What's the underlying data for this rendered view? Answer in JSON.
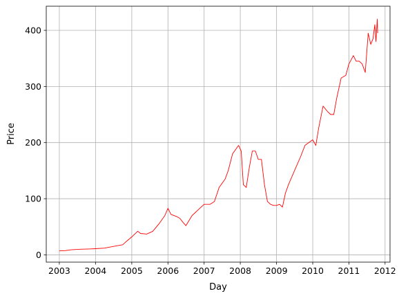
{
  "chart_data": {
    "type": "line",
    "title": "",
    "xlabel": "Day",
    "ylabel": "Price",
    "x_ticks": [
      "2003",
      "2004",
      "2005",
      "2006",
      "2007",
      "2008",
      "2009",
      "2010",
      "2011",
      "2012"
    ],
    "y_ticks": [
      0,
      100,
      200,
      300,
      400
    ],
    "xlim": [
      "2002-08-22",
      "2012-02-20"
    ],
    "ylim": [
      -13,
      443
    ],
    "grid": true,
    "series": [
      {
        "color": "#ff0000",
        "points": [
          [
            "2003-01-01",
            7
          ],
          [
            "2003-03-01",
            7.5
          ],
          [
            "2003-05-01",
            9
          ],
          [
            "2003-08-01",
            10
          ],
          [
            "2003-11-01",
            10.5
          ],
          [
            "2004-01-01",
            11
          ],
          [
            "2004-04-01",
            12
          ],
          [
            "2004-07-01",
            15
          ],
          [
            "2004-10-01",
            18
          ],
          [
            "2004-11-15",
            25
          ],
          [
            "2005-01-01",
            32
          ],
          [
            "2005-03-01",
            42
          ],
          [
            "2005-04-01",
            38
          ],
          [
            "2005-06-01",
            37
          ],
          [
            "2005-08-01",
            42
          ],
          [
            "2005-10-01",
            55
          ],
          [
            "2005-12-01",
            70
          ],
          [
            "2006-01-01",
            83
          ],
          [
            "2006-02-01",
            72
          ],
          [
            "2006-04-01",
            68
          ],
          [
            "2006-05-01",
            65
          ],
          [
            "2006-06-01",
            58
          ],
          [
            "2006-07-01",
            52
          ],
          [
            "2006-09-01",
            70
          ],
          [
            "2006-11-01",
            80
          ],
          [
            "2007-01-01",
            90
          ],
          [
            "2007-03-01",
            90
          ],
          [
            "2007-04-15",
            95
          ],
          [
            "2007-06-01",
            120
          ],
          [
            "2007-08-01",
            135
          ],
          [
            "2007-09-01",
            150
          ],
          [
            "2007-10-15",
            180
          ],
          [
            "2007-12-15",
            195
          ],
          [
            "2008-01-10",
            185
          ],
          [
            "2008-02-01",
            125
          ],
          [
            "2008-03-01",
            120
          ],
          [
            "2008-04-01",
            155
          ],
          [
            "2008-05-01",
            185
          ],
          [
            "2008-06-01",
            185
          ],
          [
            "2008-07-01",
            170
          ],
          [
            "2008-08-01",
            170
          ],
          [
            "2008-09-01",
            125
          ],
          [
            "2008-10-01",
            95
          ],
          [
            "2008-11-01",
            90
          ],
          [
            "2008-12-01",
            88
          ],
          [
            "2009-01-01",
            88
          ],
          [
            "2009-02-01",
            90
          ],
          [
            "2009-03-01",
            85
          ],
          [
            "2009-04-01",
            110
          ],
          [
            "2009-05-01",
            125
          ],
          [
            "2009-07-01",
            150
          ],
          [
            "2009-09-01",
            175
          ],
          [
            "2009-10-15",
            195
          ],
          [
            "2010-01-01",
            205
          ],
          [
            "2010-02-01",
            195
          ],
          [
            "2010-03-01",
            225
          ],
          [
            "2010-04-15",
            265
          ],
          [
            "2010-06-01",
            255
          ],
          [
            "2010-07-01",
            250
          ],
          [
            "2010-08-01",
            250
          ],
          [
            "2010-09-01",
            280
          ],
          [
            "2010-10-15",
            315
          ],
          [
            "2010-12-01",
            320
          ],
          [
            "2011-01-01",
            340
          ],
          [
            "2011-02-15",
            355
          ],
          [
            "2011-03-15",
            345
          ],
          [
            "2011-04-15",
            345
          ],
          [
            "2011-05-15",
            340
          ],
          [
            "2011-06-15",
            325
          ],
          [
            "2011-07-15",
            395
          ],
          [
            "2011-08-10",
            375
          ],
          [
            "2011-09-01",
            385
          ],
          [
            "2011-09-20",
            410
          ],
          [
            "2011-10-01",
            380
          ],
          [
            "2011-10-14",
            420
          ],
          [
            "2011-10-18",
            395
          ]
        ]
      }
    ]
  }
}
